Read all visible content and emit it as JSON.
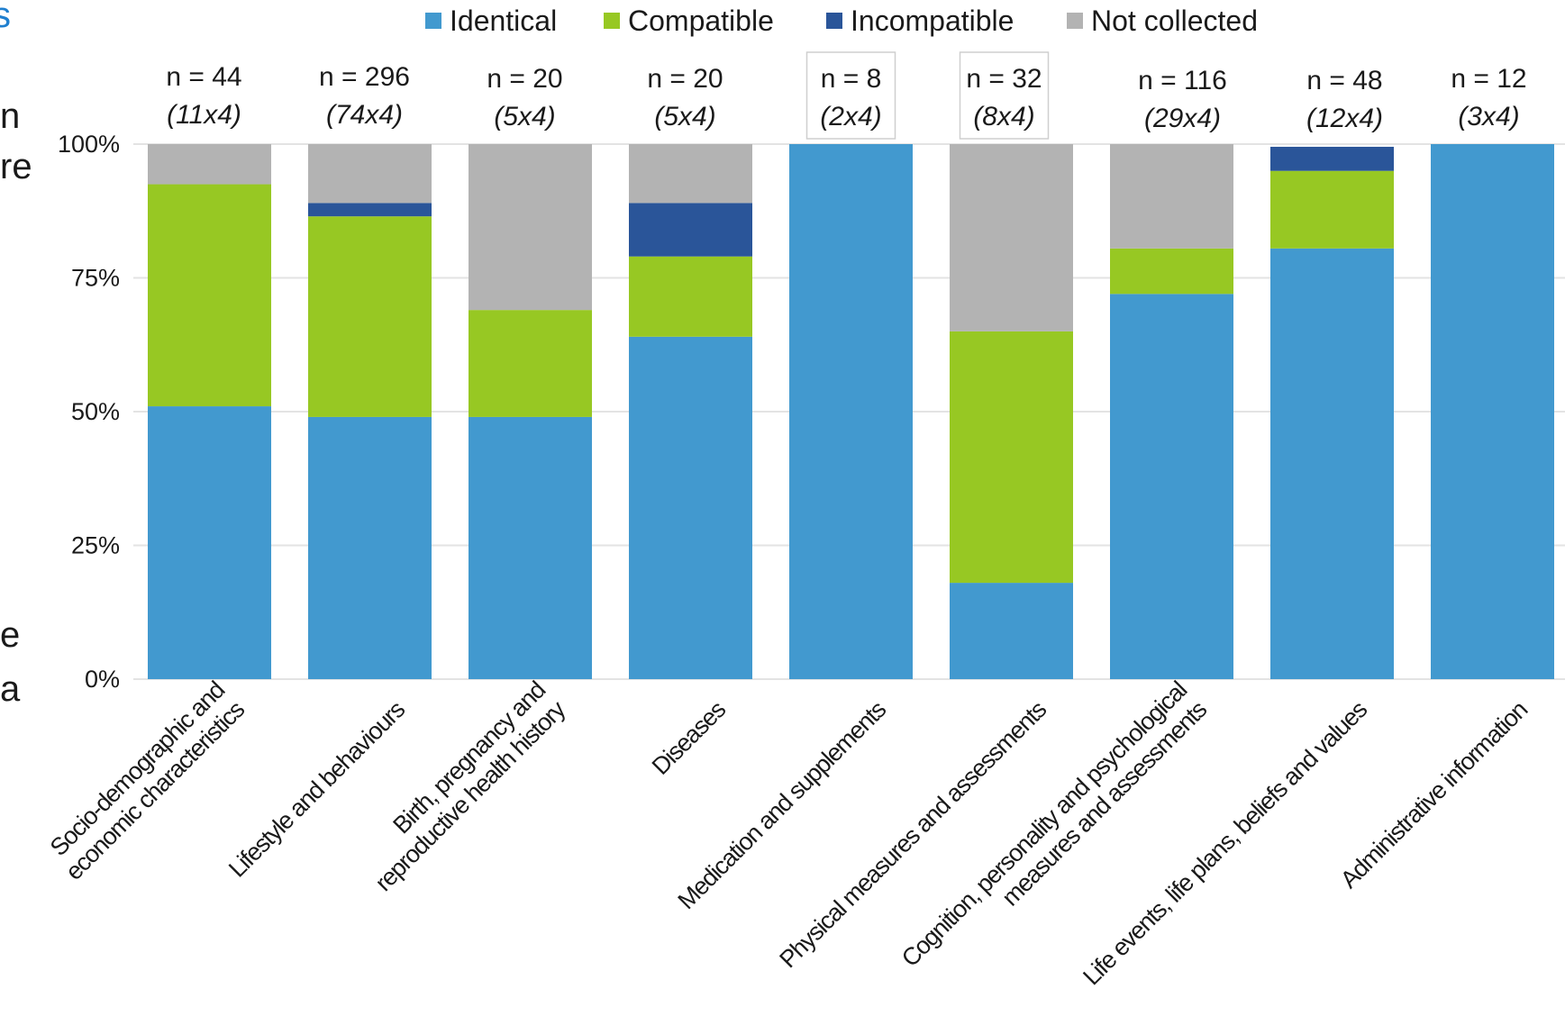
{
  "page": {
    "cropped_text_left": [
      "n",
      "re",
      "e",
      "a"
    ],
    "cropped_text_top_left": "s"
  },
  "chart_data": {
    "type": "bar",
    "stacked": true,
    "percent": true,
    "title": "",
    "xlabel": "",
    "ylabel": "",
    "ylim": [
      0,
      100
    ],
    "yticks": [
      0,
      25,
      50,
      75,
      100
    ],
    "ytick_labels": [
      "0%",
      "25%",
      "50%",
      "75%",
      "100%"
    ],
    "grid": true,
    "legend_position": "top",
    "categories": [
      [
        "Socio-demographic and",
        "economic characteristics"
      ],
      [
        "Lifestyle and behaviours"
      ],
      [
        "Birth, pregnancy and",
        "reproductive health history"
      ],
      [
        "Diseases"
      ],
      [
        "Medication and supplements"
      ],
      [
        "Physical measures and assessments"
      ],
      [
        "Cognition, personality and psychological",
        "measures and assessments"
      ],
      [
        "Life events, life plans, beliefs and values"
      ],
      [
        "Administrative information"
      ]
    ],
    "n_labels": [
      "n = 44",
      "n = 296",
      "n = 20",
      "n = 20",
      "n = 8",
      "n = 32",
      "n = 116",
      "n = 48",
      "n = 12"
    ],
    "multiplier_labels": [
      "(11x4)",
      "(74x4)",
      "(5x4)",
      "(5x4)",
      "(2x4)",
      "(8x4)",
      "(29x4)",
      "(12x4)",
      "(3x4)"
    ],
    "boxed_columns": [
      4,
      5
    ],
    "series": [
      {
        "name": "Identical",
        "color": "#4299cf",
        "values": [
          51,
          49,
          49,
          64,
          100,
          18,
          72,
          80.5,
          100
        ]
      },
      {
        "name": "Compatible",
        "color": "#97c823",
        "values": [
          41.5,
          37.5,
          20,
          15,
          0,
          47,
          8.5,
          14.5,
          0
        ]
      },
      {
        "name": "Incompatible",
        "color": "#2a5599",
        "values": [
          0,
          2.5,
          0,
          10,
          0,
          0,
          0,
          4.5,
          0
        ]
      },
      {
        "name": "Not collected",
        "color": "#b3b3b3",
        "values": [
          7.5,
          11,
          31,
          11,
          0,
          35,
          19.5,
          0,
          0
        ]
      }
    ]
  }
}
